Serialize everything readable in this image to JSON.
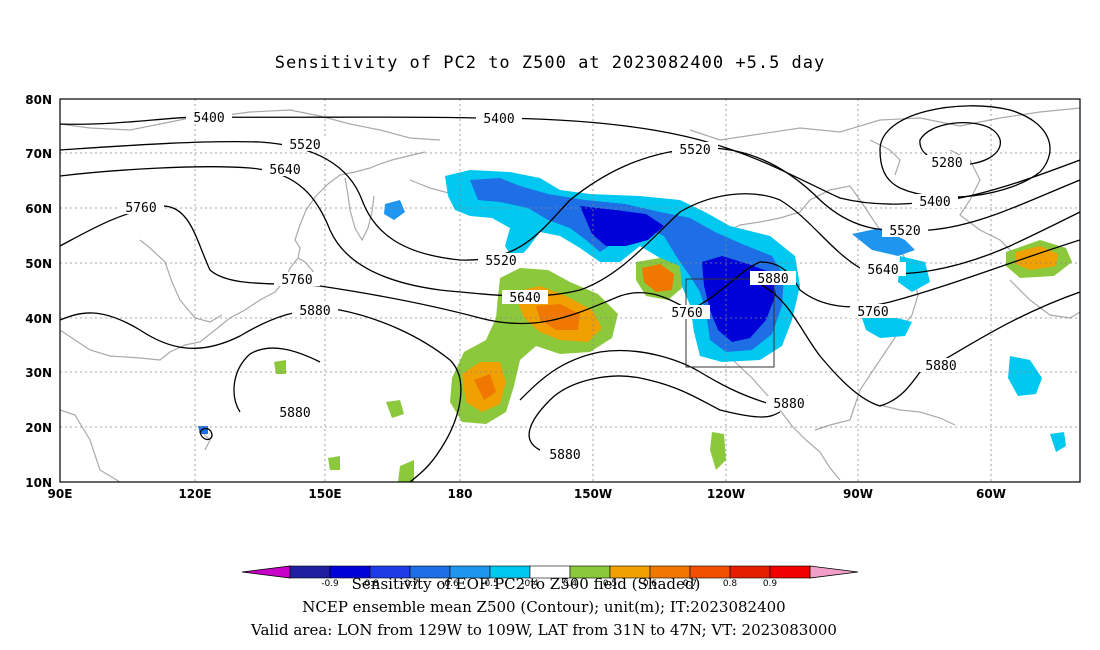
{
  "title": "Sensitivity of PC2 to Z500 at 2023082400 +5.5 day",
  "axes": {
    "lat_ticks": [
      "80N",
      "70N",
      "60N",
      "50N",
      "40N",
      "30N",
      "20N",
      "10N"
    ],
    "lon_ticks": [
      "90E",
      "120E",
      "150E",
      "180",
      "150W",
      "120W",
      "90W",
      "60W"
    ]
  },
  "contour_labels": [
    "5400",
    "5400",
    "5520",
    "5520",
    "5520",
    "5520",
    "5640",
    "5640",
    "5640",
    "5760",
    "5760",
    "5760",
    "5760",
    "5880",
    "5880",
    "5880",
    "5880",
    "5880",
    "5880",
    "5280",
    "5400"
  ],
  "valid_area": {
    "lon_from": "129W",
    "lon_to": "109W",
    "lat_from": "31N",
    "lat_to": "47N"
  },
  "colorbar": {
    "labels": [
      "-0.9",
      "-0.8",
      "-0.7",
      "-0.6",
      "-0.5",
      "-0.4",
      "0.4",
      "0.5",
      "0.6",
      "0.7",
      "0.8",
      "0.9"
    ],
    "colors": [
      "#c800c8",
      "#1e1ea0",
      "#0000d8",
      "#1e3ce6",
      "#1e6ee6",
      "#1e96f0",
      "#00c8f0",
      "#ffffff",
      "#8cc83c",
      "#f0a000",
      "#f07800",
      "#f05000",
      "#e61e00",
      "#f00000",
      "#f0a0c8"
    ]
  },
  "captions": {
    "line1": "Sensitivity of EOF PC2 to Z500 field (Shaded)",
    "line2": "NCEP ensemble mean Z500 (Contour); unit(m); IT:2023082400",
    "line3": "Valid area: LON from 129W to 109W, LAT from 31N to 47N; VT: 2023083000"
  }
}
